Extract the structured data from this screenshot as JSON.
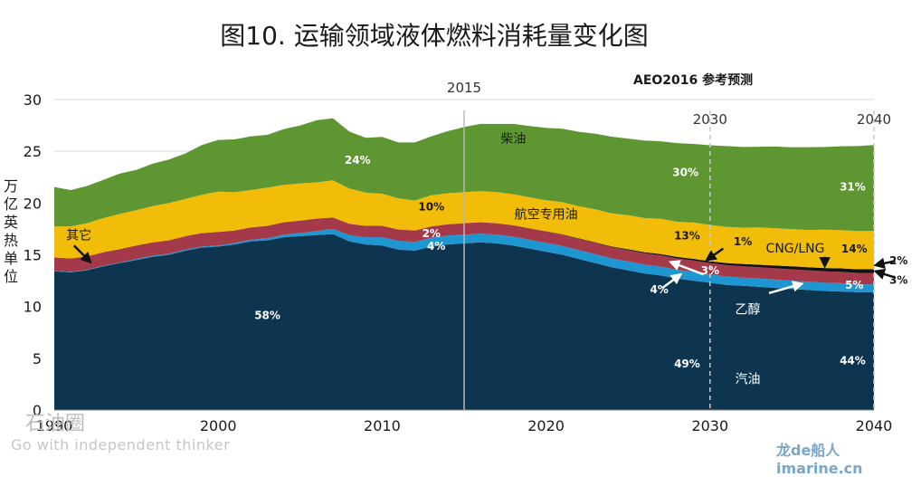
{
  "title": "图10. 运输领域液体燃料消耗量变化图",
  "aeo_label": "AEO2016  参考预测",
  "ylabel": "万亿英热单位",
  "watermark": {
    "brand": "石油圈",
    "slogan": "Go with independent thinker",
    "site": "龙de船人 imarine.cn"
  },
  "markers": [
    {
      "x": 2015,
      "label": "2015",
      "style": "solid"
    },
    {
      "x": 2030,
      "label": "2030",
      "style": "dashed"
    },
    {
      "x": 2040,
      "label": "2040",
      "style": "dashed"
    }
  ],
  "chart_data": {
    "type": "area",
    "title": "图10. 运输领域液体燃料消耗量变化图",
    "xlabel": "",
    "ylabel": "万亿英热单位",
    "xlim": [
      1990,
      2040
    ],
    "ylim": [
      0,
      30
    ],
    "xticks": [
      1990,
      2000,
      2010,
      2020,
      2030,
      2040
    ],
    "yticks": [
      0,
      5,
      10,
      15,
      20,
      25,
      30
    ],
    "grid": "horizontal",
    "x": [
      1990,
      1991,
      1992,
      1993,
      1994,
      1995,
      1996,
      1997,
      1998,
      1999,
      2000,
      2001,
      2002,
      2003,
      2004,
      2005,
      2006,
      2007,
      2008,
      2009,
      2010,
      2011,
      2012,
      2013,
      2014,
      2015,
      2016,
      2017,
      2018,
      2019,
      2020,
      2021,
      2022,
      2023,
      2024,
      2025,
      2026,
      2027,
      2028,
      2029,
      2030,
      2031,
      2032,
      2033,
      2034,
      2035,
      2036,
      2037,
      2038,
      2039,
      2040
    ],
    "series": [
      {
        "name": "汽油",
        "color": "#0d3550",
        "values": [
          13.4,
          13.3,
          13.5,
          13.9,
          14.2,
          14.5,
          14.8,
          15.0,
          15.4,
          15.7,
          15.8,
          16.0,
          16.3,
          16.4,
          16.7,
          16.8,
          16.9,
          17.0,
          16.3,
          16.0,
          15.9,
          15.5,
          15.4,
          15.8,
          16.0,
          16.1,
          16.2,
          16.1,
          15.9,
          15.6,
          15.3,
          15.0,
          14.6,
          14.2,
          13.8,
          13.5,
          13.2,
          13.0,
          12.7,
          12.5,
          12.3,
          12.1,
          12.0,
          11.9,
          11.8,
          11.7,
          11.6,
          11.5,
          11.45,
          11.4,
          11.4
        ]
      },
      {
        "name": "乙醇",
        "color": "#1e96d2",
        "values": [
          0.05,
          0.05,
          0.05,
          0.05,
          0.05,
          0.1,
          0.1,
          0.1,
          0.1,
          0.1,
          0.1,
          0.15,
          0.15,
          0.2,
          0.25,
          0.3,
          0.4,
          0.5,
          0.6,
          0.7,
          0.8,
          0.85,
          0.85,
          0.85,
          0.85,
          0.85,
          0.85,
          0.85,
          0.85,
          0.85,
          0.85,
          0.85,
          0.85,
          0.85,
          0.85,
          0.85,
          0.85,
          0.85,
          0.85,
          0.85,
          0.8,
          0.8,
          0.8,
          0.8,
          0.8,
          0.8,
          0.8,
          0.8,
          0.8,
          0.75,
          0.75
        ]
      },
      {
        "name": "其它",
        "color": "#a4394a",
        "values": [
          1.3,
          1.3,
          1.3,
          1.3,
          1.3,
          1.3,
          1.3,
          1.3,
          1.3,
          1.3,
          1.3,
          1.2,
          1.2,
          1.2,
          1.2,
          1.2,
          1.2,
          1.1,
          1.1,
          1.1,
          1.1,
          1.1,
          1.1,
          1.1,
          1.1,
          1.1,
          1.1,
          1.1,
          1.1,
          1.1,
          1.1,
          1.1,
          1.1,
          1.1,
          1.1,
          1.1,
          1.1,
          1.1,
          1.1,
          1.1,
          1.1,
          1.1,
          1.1,
          1.1,
          1.1,
          1.1,
          1.1,
          1.1,
          1.1,
          1.1,
          1.1
        ]
      },
      {
        "name": "CNG/LNG",
        "color": "#111111",
        "values": [
          0,
          0,
          0,
          0,
          0,
          0,
          0,
          0,
          0,
          0,
          0,
          0,
          0,
          0,
          0,
          0,
          0,
          0,
          0,
          0,
          0,
          0,
          0,
          0,
          0,
          0,
          0,
          0,
          0,
          0,
          0.02,
          0.03,
          0.04,
          0.05,
          0.06,
          0.08,
          0.1,
          0.12,
          0.14,
          0.16,
          0.18,
          0.2,
          0.22,
          0.24,
          0.26,
          0.28,
          0.3,
          0.32,
          0.34,
          0.35,
          0.36
        ]
      },
      {
        "name": "航空专用油",
        "color": "#f2bd08",
        "values": [
          3.0,
          3.1,
          3.2,
          3.3,
          3.4,
          3.4,
          3.5,
          3.6,
          3.6,
          3.7,
          3.9,
          3.7,
          3.6,
          3.7,
          3.6,
          3.6,
          3.5,
          3.6,
          3.4,
          3.2,
          3.1,
          3.0,
          2.9,
          3.0,
          3.0,
          3.0,
          3.0,
          3.0,
          3.0,
          3.0,
          3.0,
          3.1,
          3.1,
          3.2,
          3.2,
          3.3,
          3.3,
          3.4,
          3.4,
          3.5,
          3.5,
          3.5,
          3.5,
          3.6,
          3.6,
          3.6,
          3.6,
          3.7,
          3.7,
          3.7,
          3.7
        ]
      },
      {
        "name": "柴油",
        "color": "#5e9732",
        "values": [
          3.8,
          3.5,
          3.6,
          3.7,
          3.9,
          3.9,
          4.1,
          4.2,
          4.4,
          4.8,
          5.0,
          5.1,
          5.2,
          5.1,
          5.4,
          5.6,
          6.0,
          6.0,
          5.5,
          5.3,
          5.5,
          5.4,
          5.6,
          5.7,
          6.0,
          6.3,
          6.5,
          6.6,
          6.8,
          6.9,
          7.0,
          7.1,
          7.2,
          7.3,
          7.4,
          7.4,
          7.5,
          7.5,
          7.6,
          7.6,
          7.7,
          7.8,
          7.8,
          7.8,
          7.9,
          7.9,
          8.0,
          8.0,
          8.1,
          8.2,
          8.3
        ]
      }
    ],
    "annotations": [
      {
        "text": "柴油",
        "x": 2018,
        "y": 25.8,
        "color": "#1a1a1a",
        "size": 14
      },
      {
        "text": "24%",
        "x": 2008.5,
        "y": 23.8,
        "color": "#ffffff",
        "size": 12,
        "bold": true
      },
      {
        "text": "30%",
        "x": 2028.5,
        "y": 22.6,
        "color": "#ffffff",
        "size": 12,
        "bold": true
      },
      {
        "text": "31%",
        "x": 2038.7,
        "y": 21.2,
        "color": "#ffffff",
        "size": 12,
        "bold": true
      },
      {
        "text": "10%",
        "x": 2013,
        "y": 19.3,
        "color": "#1a1a1a",
        "size": 12,
        "bold": true
      },
      {
        "text": "航空专用油",
        "x": 2020,
        "y": 18.5,
        "color": "#1a1a1a",
        "size": 14
      },
      {
        "text": "13%",
        "x": 2028.6,
        "y": 16.5,
        "color": "#1a1a1a",
        "size": 12,
        "bold": true
      },
      {
        "text": "1%",
        "x": 2032,
        "y": 15.9,
        "color": "#1a1a1a",
        "size": 12,
        "bold": true
      },
      {
        "text": "CNG/LNG",
        "x": 2035.2,
        "y": 15.2,
        "color": "#1a1a1a",
        "size": 14
      },
      {
        "text": "14%",
        "x": 2038.8,
        "y": 15.2,
        "color": "#1a1a1a",
        "size": 12,
        "bold": true
      },
      {
        "text": "其它",
        "x": 1991.5,
        "y": 16.5,
        "color": "#1a1a1a",
        "size": 14
      },
      {
        "text": "2%",
        "x": 2013,
        "y": 16.7,
        "color": "#ffffff",
        "size": 12,
        "bold": true
      },
      {
        "text": "4%",
        "x": 2013.3,
        "y": 15.5,
        "color": "#ffffff",
        "size": 12,
        "bold": true
      },
      {
        "text": "3%",
        "x": 2030,
        "y": 13.1,
        "color": "#ffffff",
        "size": 12,
        "bold": true
      },
      {
        "text": "4%",
        "x": 2026.9,
        "y": 11.3,
        "color": "#ffffff",
        "size": 12,
        "bold": true
      },
      {
        "text": "5%",
        "x": 2038.8,
        "y": 11.7,
        "color": "#ffffff",
        "size": 12,
        "bold": true
      },
      {
        "text": "乙醇",
        "x": 2032.3,
        "y": 9.3,
        "color": "#ffffff",
        "size": 14
      },
      {
        "text": "58%",
        "x": 2003,
        "y": 8.8,
        "color": "#ffffff",
        "size": 12,
        "bold": true
      },
      {
        "text": "49%",
        "x": 2028.6,
        "y": 4.1,
        "color": "#ffffff",
        "size": 12,
        "bold": true
      },
      {
        "text": "汽油",
        "x": 2032.3,
        "y": 2.6,
        "color": "#ffffff",
        "size": 14
      },
      {
        "text": "44%",
        "x": 2038.7,
        "y": 4.4,
        "color": "#ffffff",
        "size": 12,
        "bold": true
      },
      {
        "text": "2%",
        "x": 2041.5,
        "y": 14.1,
        "color": "#1a1a1a",
        "size": 12,
        "bold": true
      },
      {
        "text": "3%",
        "x": 2041.5,
        "y": 12.2,
        "color": "#1a1a1a",
        "size": 12,
        "bold": true
      }
    ],
    "arrows": [
      {
        "from": [
          1991.2,
          15.9
        ],
        "to": [
          1992.2,
          14.3
        ],
        "color": "#111111"
      },
      {
        "from": [
          2030.8,
          15.6
        ],
        "to": [
          2029.8,
          14.5
        ],
        "color": "#111111"
      },
      {
        "from": [
          2037.0,
          14.8
        ],
        "to": [
          2037.0,
          13.9
        ],
        "color": "#111111"
      },
      {
        "from": [
          2029.6,
          13.1
        ],
        "to": [
          2027.6,
          14.3
        ],
        "color": "#ffffff"
      },
      {
        "from": [
          2027.1,
          11.8
        ],
        "to": [
          2028.2,
          13.1
        ],
        "color": "#ffffff"
      },
      {
        "from": [
          2033.6,
          11.3
        ],
        "to": [
          2035.6,
          12.2
        ],
        "color": "#ffffff"
      },
      {
        "from": [
          2041.3,
          14.4
        ],
        "to": [
          2040.1,
          14.0
        ],
        "color": "#111111"
      },
      {
        "from": [
          2041.3,
          12.8
        ],
        "to": [
          2040.1,
          13.4
        ],
        "color": "#111111"
      }
    ]
  }
}
